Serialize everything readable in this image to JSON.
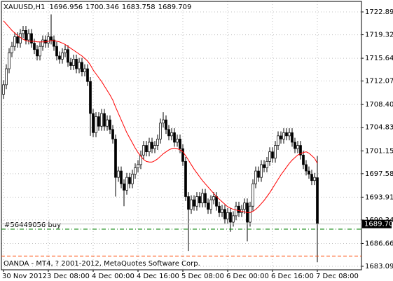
{
  "chart_data": {
    "type": "candlestick",
    "symbol": "XAUUSD,H1",
    "footer": "OANDA - MT4, ? 2001-2012, MetaQuotes Software Corp.",
    "open": [
      1710,
      1711.5,
      1714,
      1716.5,
      1717.5,
      1719,
      1718,
      1719.5,
      1720,
      1718.5,
      1719.5,
      1718,
      1717,
      1716,
      1717.5,
      1718.5,
      1718,
      1719,
      1718.5,
      1717.5,
      1716,
      1715.5,
      1716.5,
      1717,
      1715,
      1714.5,
      1715.5,
      1714,
      1715,
      1713.5,
      1714,
      1712,
      1707,
      1704,
      1706.5,
      1705,
      1707,
      1705,
      1706,
      1704.5,
      1703,
      1697,
      1698,
      1696,
      1695,
      1697,
      1696,
      1697.5,
      1698.5,
      1699,
      1700.5,
      1702,
      1701,
      1702.5,
      1701.5,
      1702,
      1703,
      1705.5,
      1706,
      1704.5,
      1703.5,
      1704,
      1702.5,
      1703,
      1701.5,
      1699.5,
      1694,
      1692,
      1693.5,
      1692.5,
      1694,
      1693,
      1694.5,
      1693,
      1692,
      1693.5,
      1694,
      1692.5,
      1691.5,
      1692,
      1690.5,
      1691.5,
      1690,
      1691,
      1692.5,
      1691.5,
      1692,
      1693,
      1690,
      1692.5,
      1696,
      1698,
      1697,
      1699,
      1698.5,
      1699.5,
      1701,
      1700,
      1702,
      1703.5,
      1703,
      1704,
      1703.5,
      1704,
      1702.5,
      1701.5,
      1702,
      1700.5,
      1699,
      1698,
      1697.5,
      1696.5,
      1696.956
    ],
    "high": [
      1712.2,
      1714.7,
      1717.2,
      1718.2,
      1719.7,
      1719.7,
      1720.2,
      1720.7,
      1720.7,
      1720.2,
      1720.2,
      1718.7,
      1717.7,
      1718.2,
      1719.2,
      1719.2,
      1719.7,
      1722.5,
      1719.2,
      1718.2,
      1716.7,
      1717.2,
      1717.7,
      1717.7,
      1715.7,
      1716.2,
      1716.2,
      1715.7,
      1715.7,
      1714.7,
      1714.7,
      1712.7,
      1707.7,
      1707.2,
      1707.2,
      1707.7,
      1707.7,
      1706.7,
      1706.7,
      1705.2,
      1703.7,
      1698.7,
      1698.7,
      1696.7,
      1697.7,
      1697.7,
      1698.2,
      1699.2,
      1699.7,
      1701.2,
      1702.7,
      1702.7,
      1703.2,
      1703.2,
      1702.7,
      1703.7,
      1706.2,
      1707.2,
      1706.7,
      1705.2,
      1704.7,
      1704.7,
      1703.7,
      1703.7,
      1702.2,
      1700.2,
      1694.7,
      1694.2,
      1694.2,
      1694.7,
      1694.7,
      1695.2,
      1695.2,
      1693.7,
      1694.2,
      1694.7,
      1694.7,
      1693.2,
      1692.7,
      1692.7,
      1692.2,
      1692.2,
      1691.7,
      1693.2,
      1693.2,
      1692.7,
      1693.7,
      1693.7,
      1693.2,
      1696.7,
      1698.7,
      1698.7,
      1699.7,
      1699.7,
      1700.2,
      1701.7,
      1701.7,
      1702.7,
      1704.2,
      1704.2,
      1704.7,
      1704.7,
      1704.7,
      1704.7,
      1703.2,
      1702.7,
      1702.7,
      1701.2,
      1699.7,
      1698.7,
      1698.2,
      1697.7,
      1700.346
    ],
    "low": [
      1709.3,
      1710.8,
      1713.3,
      1715.8,
      1716.8,
      1717.3,
      1717.3,
      1718.8,
      1717.8,
      1717.8,
      1717.3,
      1716.3,
      1715.3,
      1715.3,
      1716.8,
      1717.3,
      1717.3,
      1717.8,
      1716.8,
      1715.3,
      1714.8,
      1714.8,
      1715.8,
      1714.3,
      1713.8,
      1713.8,
      1713.3,
      1713.3,
      1712.8,
      1712.8,
      1711.3,
      1703.5,
      1703.3,
      1703.3,
      1704.3,
      1704.3,
      1704.3,
      1704.3,
      1703.8,
      1702.3,
      1694,
      1696.3,
      1695.3,
      1692.5,
      1694.3,
      1695.3,
      1695.3,
      1696.8,
      1697.8,
      1698.3,
      1699.8,
      1700.3,
      1700.3,
      1700.8,
      1700.8,
      1701.3,
      1702.3,
      1704.8,
      1703.8,
      1702.8,
      1702.8,
      1701.8,
      1701.8,
      1700.8,
      1698.8,
      1693.3,
      1685.5,
      1691.3,
      1691.8,
      1691.8,
      1692.3,
      1692.3,
      1692.3,
      1691.3,
      1691.3,
      1692.8,
      1691.8,
      1690.8,
      1690.8,
      1689.8,
      1689.8,
      1688.5,
      1689.3,
      1690.3,
      1690.8,
      1690.8,
      1691.3,
      1687,
      1689.3,
      1691.8,
      1695.3,
      1696.3,
      1696.3,
      1697.8,
      1697.8,
      1698.8,
      1699.3,
      1699.3,
      1701.3,
      1702.3,
      1702.3,
      1702.8,
      1702.8,
      1701.8,
      1700.8,
      1700.8,
      1699.8,
      1698.3,
      1697.3,
      1696.8,
      1695.8,
      1695.8,
      1683.758
    ],
    "close": [
      1711.5,
      1714,
      1716.5,
      1717.5,
      1719,
      1718,
      1719.5,
      1720,
      1718.5,
      1719.5,
      1718,
      1717,
      1716,
      1717.5,
      1718.5,
      1718,
      1719,
      1718.5,
      1717.5,
      1716,
      1715.5,
      1716.5,
      1717,
      1715,
      1714.5,
      1715.5,
      1714,
      1715,
      1713.5,
      1714,
      1712,
      1707,
      1704,
      1706.5,
      1705,
      1707,
      1705,
      1706,
      1704.5,
      1703,
      1697,
      1698,
      1696,
      1695,
      1697,
      1696,
      1697.5,
      1698.5,
      1699,
      1700.5,
      1702,
      1701,
      1702.5,
      1701.5,
      1702,
      1703,
      1705.5,
      1706,
      1704.5,
      1703.5,
      1704,
      1702.5,
      1703,
      1701.5,
      1699.5,
      1694,
      1692,
      1693.5,
      1692.5,
      1694,
      1693,
      1694.5,
      1693,
      1692,
      1693.5,
      1694,
      1692.5,
      1691.5,
      1692,
      1690.5,
      1691.5,
      1690,
      1691,
      1692.5,
      1691.5,
      1692,
      1693,
      1690,
      1692.5,
      1696,
      1698,
      1697,
      1699,
      1698.5,
      1699.5,
      1701,
      1700,
      1702,
      1703.5,
      1703,
      1704,
      1703.5,
      1704,
      1702.5,
      1701.5,
      1702,
      1700.5,
      1699,
      1698,
      1697.5,
      1696.5,
      1697,
      1689.709
    ],
    "up_color": "#ffffff",
    "down_color": "#000000",
    "ma": {
      "color": "#ff0000",
      "values": [
        1721.5,
        1721,
        1720.5,
        1720,
        1719.6,
        1719.2,
        1718.9,
        1718.6,
        1718.4,
        1718.3,
        1718.3,
        1718.3,
        1718.2,
        1718.2,
        1718.2,
        1718.2,
        1718.3,
        1718.4,
        1718.4,
        1718.3,
        1718.2,
        1718,
        1717.8,
        1717.5,
        1717.2,
        1716.9,
        1716.6,
        1716.3,
        1716,
        1715.6,
        1715.2,
        1714.6,
        1713.8,
        1713.2,
        1712.6,
        1712,
        1711.3,
        1710.6,
        1709.9,
        1709.1,
        1708,
        1707,
        1706,
        1705,
        1704,
        1703.2,
        1702.4,
        1701.6,
        1700.9,
        1700.3,
        1699.8,
        1699.5,
        1699.4,
        1699.4,
        1699.6,
        1699.9,
        1700.3,
        1700.7,
        1701,
        1701.3,
        1701.5,
        1701.6,
        1701.5,
        1701.3,
        1701,
        1700.4,
        1699.7,
        1699,
        1698.3,
        1697.7,
        1697.1,
        1696.5,
        1696,
        1695.5,
        1695,
        1694.5,
        1694,
        1693.6,
        1693.2,
        1692.8,
        1692.4,
        1692.2,
        1692,
        1691.9,
        1691.8,
        1691.7,
        1691.6,
        1691.5,
        1691.5,
        1691.7,
        1692,
        1692.4,
        1692.9,
        1693.4,
        1694,
        1694.6,
        1695.3,
        1696,
        1696.7,
        1697.4,
        1698,
        1698.6,
        1699.2,
        1699.7,
        1700.1,
        1700.5,
        1700.7,
        1700.9,
        1701,
        1700.8,
        1700.4,
        1700,
        1699.2
      ]
    },
    "order_line": {
      "label": "#56449056 buy",
      "price": 1688.9,
      "color": "#008000"
    },
    "stop_line": {
      "price": 1684.7,
      "color": "#ff4500"
    },
    "xlim": [
      -0.75,
      127.75
    ],
    "xticks": [
      {
        "value": 0,
        "label": "30 Nov 2012"
      },
      {
        "value": 16,
        "label": "3 Dec 08:00"
      },
      {
        "value": 32,
        "label": "4 Dec 00:00"
      },
      {
        "value": 48,
        "label": "4 Dec 16:00"
      },
      {
        "value": 64,
        "label": "5 Dec 08:00"
      },
      {
        "value": 80,
        "label": "6 Dec 00:00"
      },
      {
        "value": 96,
        "label": "6 Dec 16:00"
      },
      {
        "value": 112,
        "label": "7 Dec 08:00"
      }
    ],
    "ylim": [
      1682.548,
      1724.534
    ],
    "yticks": [
      {
        "value": 1722.89,
        "label": "1722.890"
      },
      {
        "value": 1719.32,
        "label": "1719.320"
      },
      1715.645,
      {
        "value": 1712.075,
        "label": "1712.075"
      },
      {
        "value": 1708.4,
        "label": "1708.400"
      },
      {
        "value": 1704.83,
        "label": "1704.830"
      },
      1701.155,
      1697.585,
      {
        "value": 1693.91,
        "label": "1693.910"
      },
      {
        "value": 1690.34,
        "label": "1690.340"
      },
      1686.665,
      1683.095
    ],
    "grid": true
  }
}
